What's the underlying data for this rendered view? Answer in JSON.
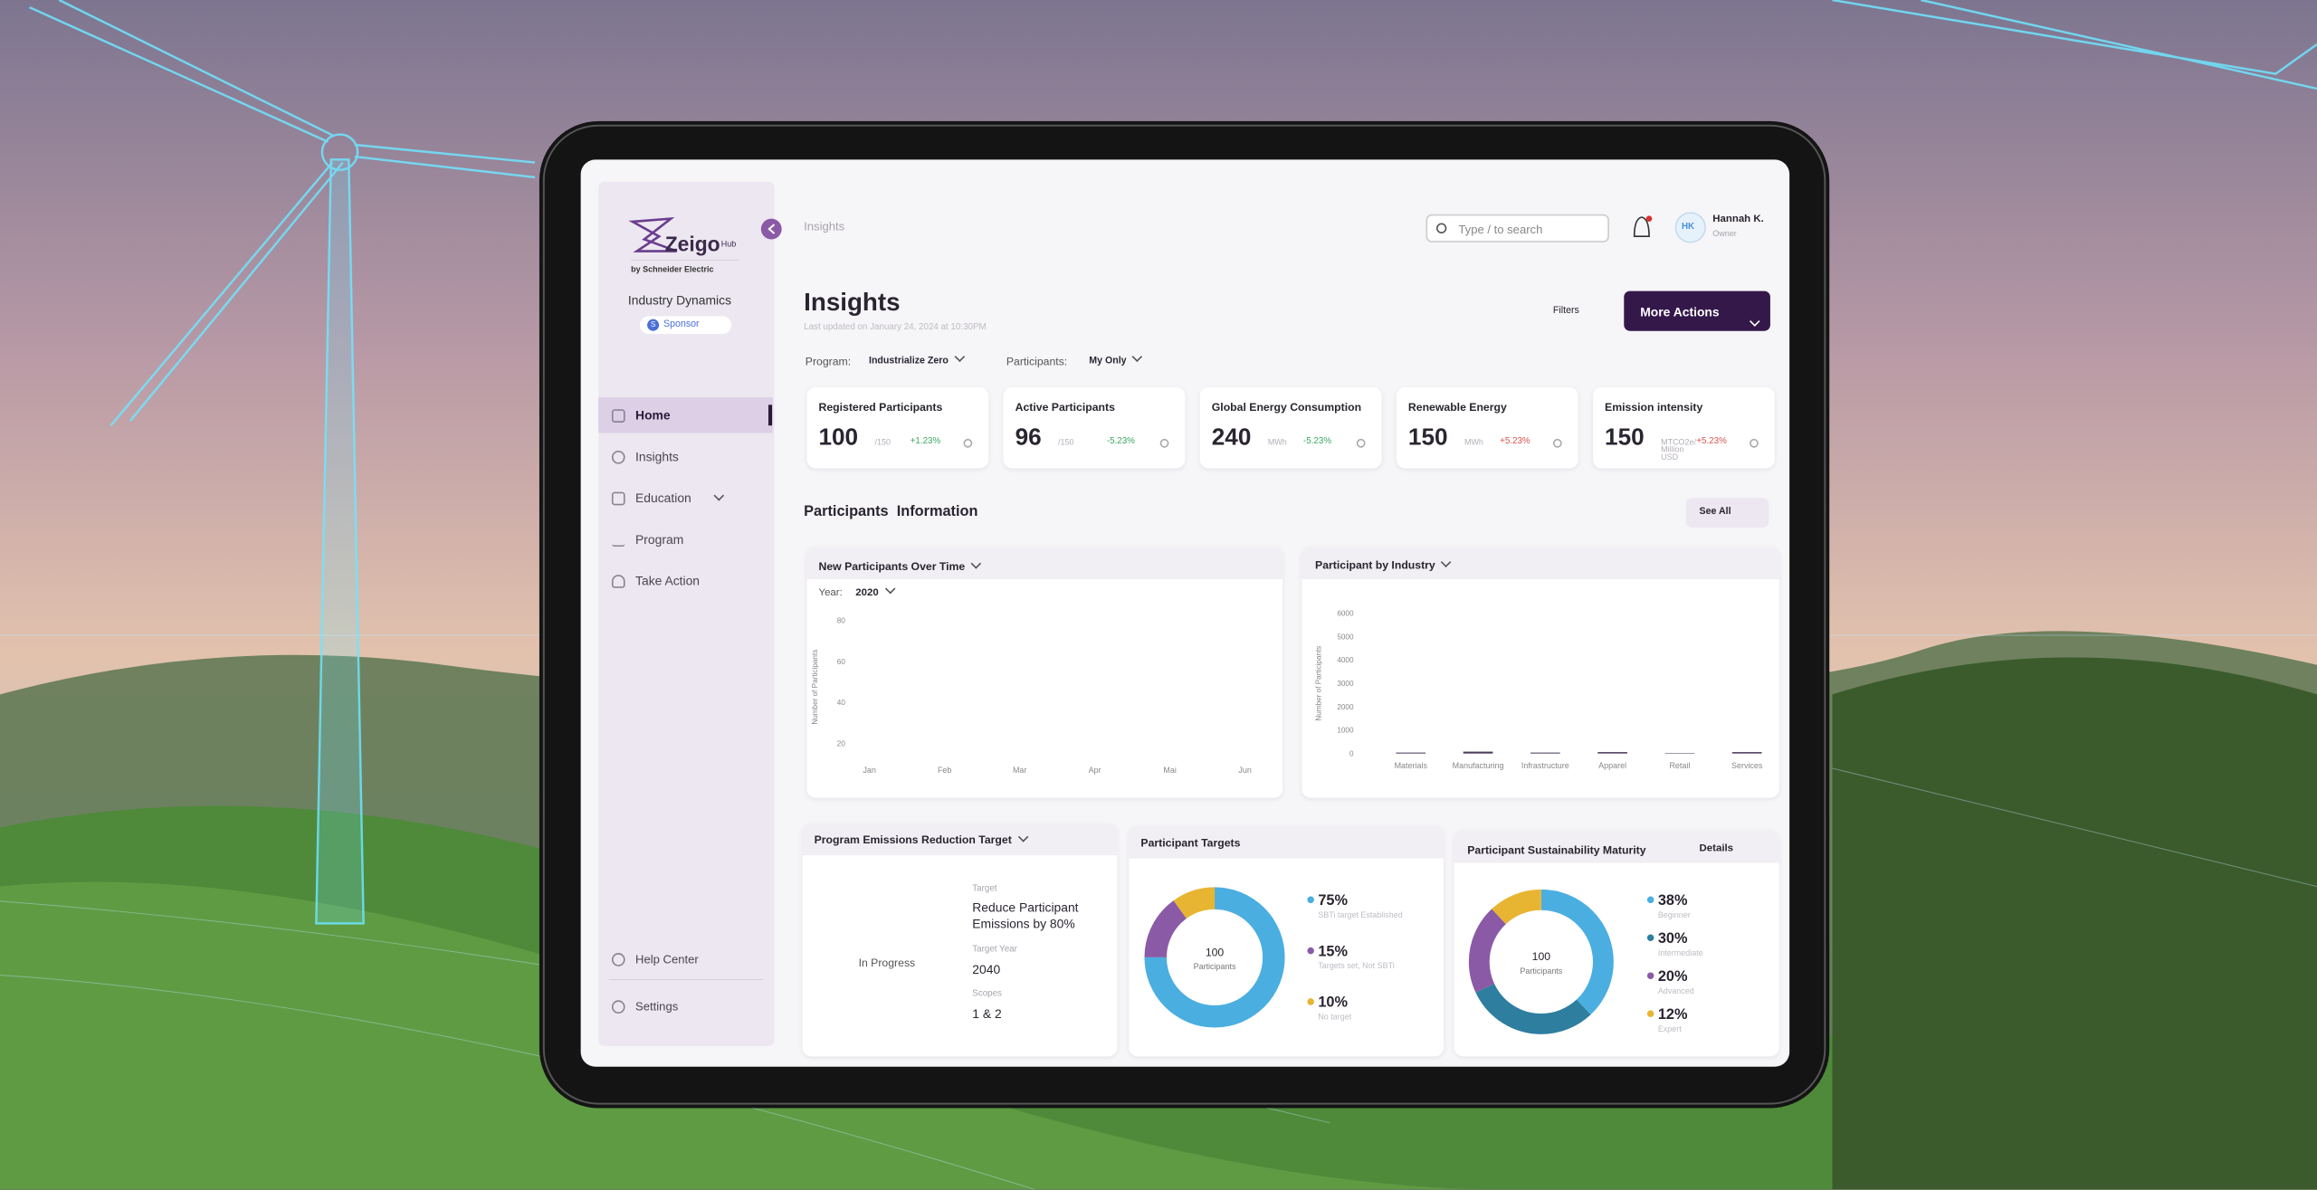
{
  "sidebar": {
    "logo": "Zeigo",
    "logo_suffix": "Hub",
    "byline": "by Schneider Electric",
    "org": "Industry Dynamics",
    "role_initial": "S",
    "role": "Sponsor",
    "nav": [
      "Home",
      "Insights",
      "Education",
      "Program",
      "Take Action"
    ],
    "footer_nav": [
      "Help Center",
      "Settings"
    ]
  },
  "header": {
    "breadcrumb": "Insights",
    "search_placeholder": "Type / to search",
    "user_initials": "HK",
    "user_name": "Hannah K.",
    "user_role": "Owner"
  },
  "page": {
    "title": "Insights",
    "updated": "Last updated on January 24, 2024 at 10:30PM",
    "filters": "Filters",
    "primary_action": "More Actions",
    "filter_fields": [
      {
        "label": "Program:",
        "value": "Industrialize Zero"
      },
      {
        "label": "Participants:",
        "value": "My Only"
      }
    ]
  },
  "kpis": [
    {
      "title": "Registered Participants",
      "value": 100,
      "unit": "/150",
      "change": "+1.23%",
      "change_color": "#3aa860"
    },
    {
      "title": "Active Participants",
      "value": 96,
      "unit": "/150",
      "change": "-5.23%",
      "change_color": "#3aa860"
    },
    {
      "title": "Global Energy Consumption",
      "value": 240,
      "unit": "MWh",
      "change": "-5.23%",
      "change_color": "#3aa860"
    },
    {
      "title": "Renewable Energy",
      "value": 150,
      "unit": "MWh",
      "change": "+5.23%",
      "change_color": "#d9534f"
    },
    {
      "title": "Emission intensity",
      "value": 150,
      "unit": "MTCO2e/ Million USD",
      "change": "+5.23%",
      "change_color": "#d9534f"
    }
  ],
  "section": {
    "title": "Participants  Information",
    "action": "See All"
  },
  "emissions_target": {
    "title": "Program Emissions Reduction Target",
    "status": "In Progress",
    "fields": [
      {
        "label": "Target",
        "value": "Reduce Participant Emissions by 80%"
      },
      {
        "label": "Target Year",
        "value": "2040"
      },
      {
        "label": "Scopes",
        "value": "1 & 2"
      }
    ]
  },
  "chart_data": [
    {
      "type": "line",
      "title": "New Participants Over Time",
      "filter_label": "Year:",
      "filter_value": "2020",
      "y_label": "Number of Participants",
      "categories": [
        "Jan",
        "Feb",
        "Mar",
        "Apr",
        "Mai",
        "Jun"
      ],
      "values": [
        null,
        null,
        null,
        null,
        null,
        null
      ],
      "color": "#4b3a5c",
      "ylim": [
        10,
        85
      ],
      "yticks": [
        20,
        40,
        60,
        80
      ]
    },
    {
      "type": "bar",
      "title": "Participant by Industry",
      "y_label": "Number of Participants",
      "categories": [
        "Materials",
        "Manufacturing",
        "Infrastructure",
        "Apparel",
        "Retail",
        "Services"
      ],
      "values": [
        40,
        80,
        40,
        60,
        20,
        60
      ],
      "color": "#4b3a5c",
      "ylim": [
        0,
        6000
      ],
      "yticks": [
        0,
        1000,
        2000,
        3000,
        4000,
        5000,
        6000
      ]
    },
    {
      "type": "donut",
      "title": "Participant Targets",
      "center_value": "100",
      "center_label": "Participants",
      "categories": [
        "SBTi target Established",
        "Targets set, Not SBTi",
        "No target"
      ],
      "values": [
        75,
        15,
        10
      ],
      "value_labels": [
        "75%",
        "15%",
        "10%"
      ],
      "colors": [
        "#4aaee0",
        "#8a5aa6",
        "#e8b532"
      ]
    },
    {
      "type": "donut",
      "title": "Participant Sustainability Maturity",
      "action": "Details",
      "center_value": "100",
      "center_label": "Participants",
      "categories": [
        "Beginner",
        "Intermediate",
        "Advanced",
        "Expert"
      ],
      "values": [
        38,
        30,
        20,
        12
      ],
      "value_labels": [
        "38%",
        "30%",
        "20%",
        "12%"
      ],
      "colors": [
        "#4aaee0",
        "#2e7ea0",
        "#8a5aa6",
        "#e8b532"
      ]
    }
  ]
}
